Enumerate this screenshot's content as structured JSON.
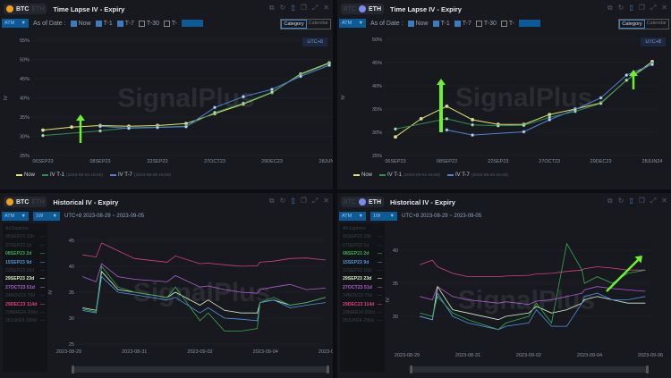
{
  "colors": {
    "now": "#e5e76a",
    "t1": "#2f8f55",
    "t7": "#4f82d8",
    "e08SEP23": "#35ad4f",
    "e15SEP23": "#4c93e6",
    "e29SEP23": "#d6f2c6",
    "e27OCT23": "#b35bd8",
    "e29DEC23": "#d6417e",
    "arrow": "#6cf22c"
  },
  "coins": {
    "btc": "BTC",
    "eth": "ETH"
  },
  "panels": [
    {
      "title": "Time Lapse IV - Expiry",
      "active_coin": "BTC",
      "atm": "ATM",
      "as_of_label": "As of Date :",
      "checks": [
        {
          "label": "Now",
          "checked": true
        },
        {
          "label": "T-1",
          "checked": true
        },
        {
          "label": "T-7",
          "checked": true
        },
        {
          "label": "T-30",
          "checked": false
        },
        {
          "label": "T-",
          "checked": false
        }
      ],
      "toggle": [
        "Category",
        "Calendar"
      ],
      "utc": "UTC+8",
      "legend": [
        {
          "label": "Now",
          "sub": ""
        },
        {
          "label": "IV T-1",
          "sub": "(2023-09-04 16:00)"
        },
        {
          "label": "IV T-7",
          "sub": "(2023-08-29 16:00)"
        }
      ]
    },
    {
      "title": "Time Lapse IV - Expiry",
      "active_coin": "ETH",
      "atm": "ATM",
      "as_of_label": "As of Date :",
      "checks": [
        {
          "label": "Now",
          "checked": true
        },
        {
          "label": "T-1",
          "checked": true
        },
        {
          "label": "T-7",
          "checked": true
        },
        {
          "label": "T-30",
          "checked": false
        },
        {
          "label": "T-",
          "checked": false
        }
      ],
      "toggle": [
        "Category",
        "Calendar"
      ],
      "utc": "UTC+8",
      "legend": [
        {
          "label": "Now",
          "sub": ""
        },
        {
          "label": "IV T-1",
          "sub": "(2023-09-04 16:00)"
        },
        {
          "label": "IV T-7",
          "sub": "(2023-08-29 16:00)"
        }
      ]
    },
    {
      "title": "Historical IV - Expiry",
      "active_coin": "BTC",
      "atm": "ATM",
      "period": "1W",
      "range": "UTC+8 2023-08-29 ~ 2023-09-05"
    },
    {
      "title": "Historical IV - Expiry",
      "active_coin": "ETH",
      "atm": "ATM",
      "period": "1W",
      "range": "UTC+8 2023-08-29 ~ 2023-09-05"
    }
  ],
  "expiries": [
    {
      "label": "All Expiries",
      "active": false
    },
    {
      "label": "06SEP23 23h",
      "active": false
    },
    {
      "label": "07SEP23 1d",
      "active": false
    },
    {
      "label": "08SEP23 2d",
      "active": true,
      "key": "e08SEP23"
    },
    {
      "label": "15SEP23 9d",
      "active": true,
      "key": "e15SEP23"
    },
    {
      "label": "22SEP23 16d",
      "active": false
    },
    {
      "label": "29SEP23 23d",
      "active": true,
      "key": "e29SEP23"
    },
    {
      "label": "27OCT23 51d",
      "active": true,
      "key": "e27OCT23"
    },
    {
      "label": "24NOV23 79d",
      "active": false
    },
    {
      "label": "29DEC23 114d",
      "active": true,
      "key": "e29DEC23"
    },
    {
      "label": "29MAR24 206d",
      "active": false
    },
    {
      "label": "28JUN24 296d",
      "active": false
    }
  ],
  "watermark": "SignalPlus",
  "chart_data": [
    {
      "type": "line",
      "ylabel": "IV",
      "ylim": [
        25,
        55
      ],
      "yticks": [
        "25%",
        "30%",
        "35%",
        "40%",
        "45%",
        "50%",
        "55%"
      ],
      "categories": [
        "06SEP23",
        "07SEP23",
        "08SEP23",
        "15SEP23",
        "22SEP23",
        "29SEP23",
        "27OCT23",
        "24NOV23",
        "29DEC23",
        "29MAR24",
        "28JUN24"
      ],
      "xtick_labels": [
        "06SEP23",
        "08SEP23",
        "22SEP23",
        "27OCT23",
        "29DEC23",
        "28JUN24"
      ],
      "series": [
        {
          "name": "Now",
          "key": "now",
          "values": [
            31.6,
            32.4,
            32.8,
            32.6,
            32.8,
            33.3,
            35.9,
            38.4,
            41.4,
            46.2,
            49.1
          ]
        },
        {
          "name": "IV T-1",
          "key": "t1",
          "values": [
            30.2,
            null,
            31.4,
            32.2,
            32.4,
            32.6,
            36.2,
            38.6,
            41.5,
            46.0,
            48.9
          ]
        },
        {
          "name": "IV T-7",
          "key": "t7",
          "values": [
            null,
            null,
            32.6,
            32.1,
            32.3,
            32.5,
            37.5,
            40.3,
            42.2,
            45.6,
            48.5
          ]
        }
      ],
      "legend": "bottom-left",
      "grid": true
    },
    {
      "type": "line",
      "ylabel": "IV",
      "ylim": [
        25,
        50
      ],
      "yticks": [
        "25%",
        "30%",
        "35%",
        "40%",
        "45%",
        "50%"
      ],
      "categories": [
        "06SEP23",
        "07SEP23",
        "08SEP23",
        "15SEP23",
        "22SEP23",
        "29SEP23",
        "27OCT23",
        "24NOV23",
        "29DEC23",
        "29MAR24",
        "28JUN24"
      ],
      "xtick_labels": [
        "06SEP23",
        "08SEP23",
        "22SEP23",
        "27OCT23",
        "29DEC23",
        "28JUN24"
      ],
      "series": [
        {
          "name": "Now",
          "key": "now",
          "values": [
            29.0,
            32.9,
            35.6,
            32.7,
            31.7,
            31.7,
            33.8,
            35.0,
            36.3,
            41.2,
            45.2
          ]
        },
        {
          "name": "IV T-1",
          "key": "t1",
          "values": [
            30.7,
            null,
            32.9,
            31.6,
            31.4,
            31.5,
            33.2,
            34.5,
            36.2,
            41.2,
            44.8
          ]
        },
        {
          "name": "IV T-7",
          "key": "t7",
          "values": [
            null,
            null,
            30.5,
            29.4,
            null,
            30.1,
            32.7,
            34.9,
            37.4,
            42.3,
            44.6
          ]
        }
      ],
      "legend": "bottom-left",
      "grid": true
    },
    {
      "type": "line",
      "ylabel": "IV",
      "ylim": [
        25,
        45
      ],
      "yticks": [
        "25",
        "30",
        "35",
        "40",
        "45"
      ],
      "xtick_labels": [
        "2023-08-29",
        "2023-08-31",
        "2023-09-02",
        "2023-09-04",
        "2023-09-06"
      ],
      "x": [
        "2023-08-29 10:00",
        "2023-08-29 20:00",
        "2023-08-30 00:00",
        "2023-08-30 12:00",
        "2023-08-31 00:00",
        "2023-09-01 00:00",
        "2023-09-01 06:00",
        "2023-09-02 00:00",
        "2023-09-02 06:00",
        "2023-09-02 18:00",
        "2023-09-03 06:00",
        "2023-09-03 18:00",
        "2023-09-03 20:00",
        "2023-09-04 06:00",
        "2023-09-04 18:00",
        "2023-09-05 06:00",
        "2023-09-05 20:00"
      ],
      "series": [
        {
          "name": "29DEC23 114d",
          "key": "e29DEC23",
          "values": [
            42.2,
            41.8,
            44.5,
            43,
            41.5,
            40.8,
            42,
            40.5,
            40.6,
            40.3,
            40,
            40.1,
            40.8,
            41,
            41.5,
            41.6,
            41.2
          ]
        },
        {
          "name": "27OCT23 51d",
          "key": "e27OCT23",
          "values": [
            38,
            37,
            40.5,
            38,
            37.5,
            37,
            38.2,
            36,
            36.2,
            35.5,
            35,
            34.8,
            35.5,
            36,
            36.5,
            35.5,
            35.8
          ]
        },
        {
          "name": "29SEP23 23d",
          "key": "e29SEP23",
          "values": [
            32,
            31.5,
            39,
            35.5,
            35,
            34,
            35,
            32.5,
            33.5,
            31.5,
            31,
            31,
            33,
            33.5,
            32.5,
            33,
            34
          ]
        },
        {
          "name": "15SEP23 9d",
          "key": "e15SEP23",
          "values": [
            31.5,
            31,
            38,
            35,
            34.5,
            33.5,
            34,
            31,
            32,
            30,
            29.8,
            29.5,
            33,
            33.5,
            32,
            32.5,
            33
          ]
        },
        {
          "name": "08SEP23 2d",
          "key": "e08SEP23",
          "values": [
            31.8,
            31.2,
            40,
            36,
            35,
            34,
            36,
            29.5,
            31,
            27.5,
            27.5,
            28,
            33,
            34,
            32.5,
            33,
            34
          ]
        }
      ],
      "legend": "left",
      "grid": true
    },
    {
      "type": "line",
      "ylabel": "IV",
      "ylim": [
        25,
        40
      ],
      "yticks": [
        "30",
        "35",
        "40"
      ],
      "xtick_labels": [
        "2023-08-29",
        "2023-08-31",
        "2023-09-02",
        "2023-09-04",
        "2023-09-06"
      ],
      "x": [
        "2023-08-29 10:00",
        "2023-08-29 20:00",
        "2023-08-30 00:00",
        "2023-08-30 12:00",
        "2023-08-31 00:00",
        "2023-09-01 00:00",
        "2023-09-01 06:00",
        "2023-09-02 00:00",
        "2023-09-02 06:00",
        "2023-09-02 18:00",
        "2023-09-03 06:00",
        "2023-09-03 18:00",
        "2023-09-03 20:00",
        "2023-09-04 06:00",
        "2023-09-04 18:00",
        "2023-09-05 06:00",
        "2023-09-05 20:00"
      ],
      "series": [
        {
          "name": "29DEC23 114d",
          "key": "e29DEC23",
          "values": [
            37.8,
            38.5,
            37.5,
            36.5,
            36,
            36,
            36.1,
            36.2,
            36.4,
            36.5,
            36.8,
            37,
            37.2,
            37.5,
            37.3,
            37,
            37
          ]
        },
        {
          "name": "27OCT23 51d",
          "key": "e27OCT23",
          "values": [
            33,
            32.5,
            34.5,
            33,
            32.5,
            32,
            32.2,
            31.8,
            32.3,
            32.5,
            33,
            33.5,
            34,
            34.5,
            34.2,
            34,
            33.8
          ]
        },
        {
          "name": "29SEP23 23d",
          "key": "e29SEP23",
          "values": [
            30,
            29.5,
            34.5,
            31,
            30.5,
            29.5,
            30,
            30.5,
            31.5,
            30.5,
            31,
            32,
            32.5,
            33,
            32.5,
            32,
            32
          ]
        },
        {
          "name": "15SEP23 9d",
          "key": "e15SEP23",
          "values": [
            30,
            29.5,
            33.5,
            30,
            29,
            28,
            28.5,
            29,
            31,
            28.5,
            28.5,
            32,
            33,
            33.5,
            32.5,
            32.5,
            33
          ]
        },
        {
          "name": "08SEP23 2d",
          "key": "e08SEP23",
          "values": [
            30.5,
            30,
            33,
            30.5,
            29.5,
            28,
            29,
            30,
            32,
            29,
            41,
            37,
            35,
            36,
            35,
            36.5,
            37
          ]
        }
      ],
      "legend": "left",
      "grid": true
    }
  ]
}
